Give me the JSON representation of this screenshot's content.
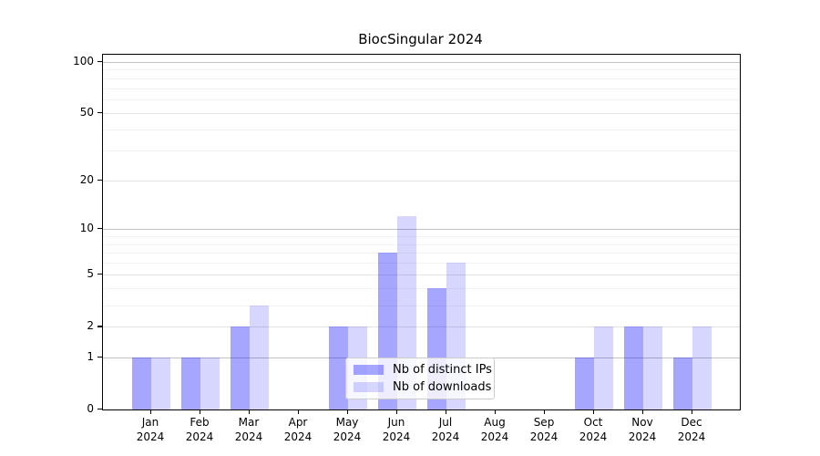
{
  "chart_data": {
    "type": "bar",
    "title": "BiocSingular 2024",
    "categories": [
      "Jan 2024",
      "Feb 2024",
      "Mar 2024",
      "Apr 2024",
      "May 2024",
      "Jun 2024",
      "Jul 2024",
      "Aug 2024",
      "Sep 2024",
      "Oct 2024",
      "Nov 2024",
      "Dec 2024"
    ],
    "series": [
      {
        "name": "Nb of distinct IPs",
        "color": "rgba(0,0,255,0.35)",
        "values": [
          1,
          1,
          2,
          0,
          2,
          7,
          4,
          0,
          0,
          1,
          2,
          1
        ]
      },
      {
        "name": "Nb of downloads",
        "color": "rgba(0,0,255,0.16)",
        "values": [
          1,
          1,
          3,
          0,
          2,
          12,
          6,
          0,
          0,
          2,
          2,
          2
        ]
      }
    ],
    "yscale": "log1p",
    "yticks": [
      100,
      50,
      20,
      10,
      5,
      2,
      1,
      0
    ],
    "ylim": [
      0,
      110
    ],
    "xlabel": "",
    "ylabel": "",
    "grid": true,
    "legend_position": "lower center",
    "background_color": "#ffffff",
    "bar_base_color": "#0000ff"
  }
}
